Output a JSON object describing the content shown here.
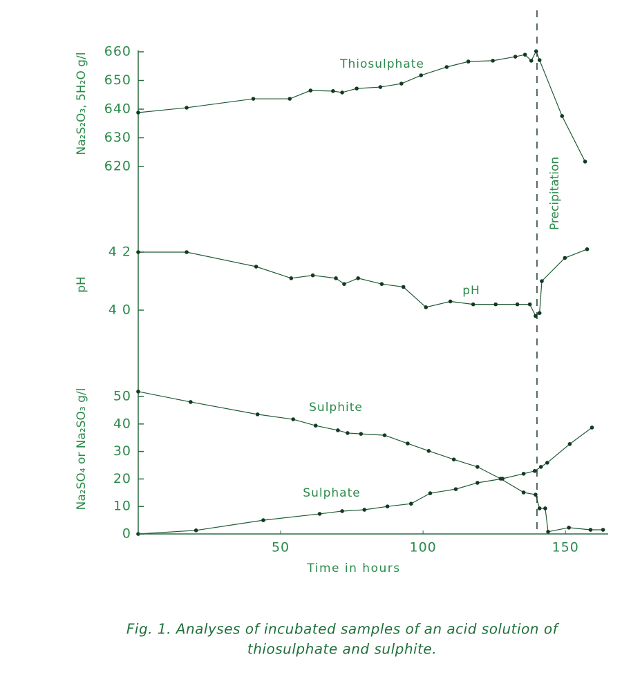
{
  "chart_data": [
    {
      "type": "line",
      "ylabel": "Na₂S₂O₃, 5H₂O g/l",
      "ylim": [
        620,
        660
      ],
      "yticks": [
        620,
        630,
        640,
        650,
        660
      ],
      "series": [
        {
          "name": "Thiosulphate",
          "color": "#1f5a35",
          "x": [
            0,
            17,
            40.4,
            53.2,
            60.5,
            68.4,
            71.6,
            76.7,
            85,
            92.4,
            99.3,
            108.3,
            115.9,
            124.5,
            132.4,
            135.8,
            138,
            139.7,
            140.9,
            148.8,
            156.9
          ],
          "values": [
            638.8,
            640.5,
            643.6,
            643.6,
            646.5,
            646.3,
            645.8,
            647.2,
            647.7,
            648.9,
            651.8,
            654.7,
            656.6,
            656.9,
            658.3,
            659,
            656.9,
            660.2,
            657.1,
            637.6,
            621.7
          ]
        }
      ]
    },
    {
      "type": "line",
      "ylabel": "pH",
      "ylim": [
        4.0,
        4.2
      ],
      "yticks": [
        {
          "value": 4.0,
          "label": "4 0"
        },
        {
          "value": 4.2,
          "label": "4 2"
        }
      ],
      "series": [
        {
          "name": "pH",
          "color": "#1f5a35",
          "x": [
            0,
            17,
            41.4,
            53.7,
            61.3,
            69.4,
            72.3,
            77.2,
            85.5,
            93.1,
            101,
            109.6,
            117.6,
            125.5,
            133.1,
            137.5,
            139.5,
            140.9,
            141.7,
            149.8,
            157.6
          ],
          "values": [
            4.2,
            4.2,
            4.15,
            4.11,
            4.12,
            4.11,
            4.09,
            4.11,
            4.09,
            4.08,
            4.01,
            4.03,
            4.02,
            4.02,
            4.02,
            4.02,
            3.98,
            3.99,
            4.1,
            4.18,
            4.21
          ]
        }
      ]
    },
    {
      "type": "line",
      "ylabel": "Na₂SO₄ or Na₂SO₃ g/l",
      "xlabel": "Time in hours",
      "xlim": [
        0,
        165
      ],
      "xticks": [
        50,
        100,
        150
      ],
      "ylim": [
        0,
        50
      ],
      "yticks": [
        0,
        10,
        20,
        30,
        40,
        50
      ],
      "annotation": {
        "text": "Precipitation",
        "x": 140
      },
      "series": [
        {
          "name": "Sulphite",
          "color": "#1f5a35",
          "x": [
            0,
            18.4,
            41.9,
            54.4,
            62.3,
            70.1,
            73.5,
            78.2,
            86.5,
            94.6,
            102,
            110.8,
            119.1,
            127.2,
            135.3,
            139.5,
            140.9,
            142.9,
            143.9,
            151.2,
            158.8,
            163.2
          ],
          "values": [
            51.8,
            48,
            43.5,
            41.7,
            39.4,
            37.7,
            36.7,
            36.4,
            35.9,
            32.9,
            30.2,
            27.1,
            24.4,
            20.1,
            15.1,
            14.3,
            9.3,
            9.3,
            0.8,
            2.3,
            1.5,
            1.5
          ]
        },
        {
          "name": "Sulphate",
          "color": "#1f5a35",
          "x": [
            0,
            20.3,
            43.9,
            63.7,
            71.6,
            79.4,
            87.5,
            95.8,
            102.5,
            111.5,
            119.1,
            127.9,
            135.3,
            139.2,
            141.4,
            143.6,
            151.5,
            159.3
          ],
          "values": [
            0,
            1.3,
            5,
            7.3,
            8.3,
            8.8,
            10,
            11,
            14.8,
            16.3,
            18.6,
            20.1,
            21.9,
            22.9,
            24.4,
            25.9,
            32.7,
            38.7
          ]
        }
      ]
    }
  ],
  "caption": [
    "Fig. 1.  Analyses of incubated samples of an acid solution of",
    "thiosulphate and sulphite."
  ]
}
